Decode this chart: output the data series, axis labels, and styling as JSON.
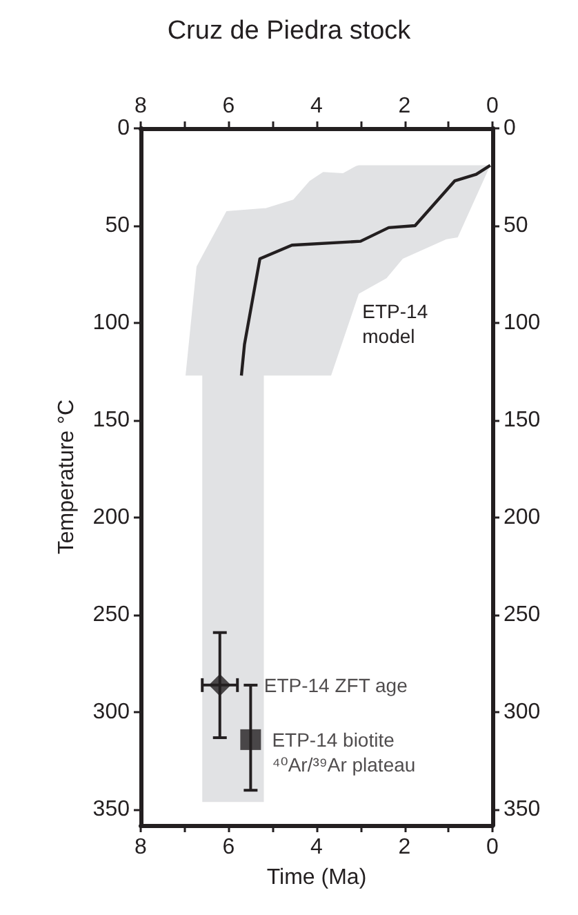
{
  "chart_data": {
    "type": "line",
    "title": "Cruz de Piedra stock",
    "xlabel": "Time (Ma)",
    "ylabel": "Temperature °C",
    "xlim": [
      8,
      0
    ],
    "xticks": [
      8,
      {
        "value": 7,
        "label": null
      },
      6,
      {
        "value": 5,
        "label": null
      },
      4,
      {
        "value": 3,
        "label": null
      },
      2,
      {
        "value": 1,
        "label": null
      },
      0
    ],
    "x2lim": [
      8,
      0
    ],
    "x2ticks": [
      8,
      {
        "value": 7,
        "label": null
      },
      6,
      {
        "value": 5,
        "label": null
      },
      4,
      {
        "value": 3,
        "label": null
      },
      2,
      {
        "value": 1,
        "label": null
      },
      0
    ],
    "ylim": [
      358,
      0
    ],
    "yticks": [
      0,
      50,
      100,
      150,
      200,
      250,
      300,
      350
    ],
    "y2lim": [
      358,
      0
    ],
    "y2ticks": [
      0,
      50,
      100,
      150,
      200,
      250,
      300,
      350
    ],
    "series": [
      {
        "type": "area",
        "color": "#e1e2e4",
        "x": [
          0.05,
          0.79,
          1.05,
          2.04,
          2.41,
          3.04,
          3.1,
          3.4,
          3.67,
          3.85,
          4.16,
          4.53,
          5.16,
          5.2,
          5.2,
          6.05,
          6.6,
          6.6,
          6.73,
          6.98
        ],
        "values": [
          null,
          null,
          null,
          null,
          null,
          null,
          null,
          null,
          null,
          null,
          null,
          null,
          null,
          null,
          null,
          null,
          null,
          null,
          null,
          null
        ],
        "upper": [
          19,
          19,
          19,
          19,
          19,
          19,
          19.3,
          23,
          22.7,
          22.4,
          27,
          36.6,
          41,
          41,
          41,
          42.5,
          65.5,
          65.5,
          71,
          127
        ],
        "lower": [
          19,
          56,
          57,
          67,
          77,
          85,
          89,
          109,
          127,
          127,
          127,
          127,
          127,
          127,
          346,
          346,
          346,
          127,
          127,
          127
        ]
      },
      {
        "color": "#231f20",
        "marker": "none",
        "x": [
          0.05,
          0.37,
          0.86,
          1.76,
          2.36,
          3.0,
          4.56,
          5.29,
          5.64,
          5.71
        ],
        "values": [
          19,
          23.6,
          27,
          50,
          51,
          58,
          60,
          67,
          111,
          127
        ]
      },
      {
        "type": "scatter",
        "name": "ETP-14 ZFT age",
        "color": "#231f20",
        "marker": "diamond",
        "x": [
          6.2
        ],
        "values": [
          286
        ],
        "errors": [
          [
            259,
            313
          ]
        ],
        "xerrors": [
          [
            5.8,
            6.6
          ]
        ]
      },
      {
        "type": "scatter",
        "name": "ETP-14 biotite\n⁴⁰Ar/³⁹Ar plateau",
        "color": "#231f20",
        "marker": "square",
        "x": [
          5.5
        ],
        "values": [
          314
        ],
        "errors": [
          [
            286,
            340
          ]
        ]
      }
    ],
    "annotations": [
      "ETP-14\nmodel"
    ]
  }
}
